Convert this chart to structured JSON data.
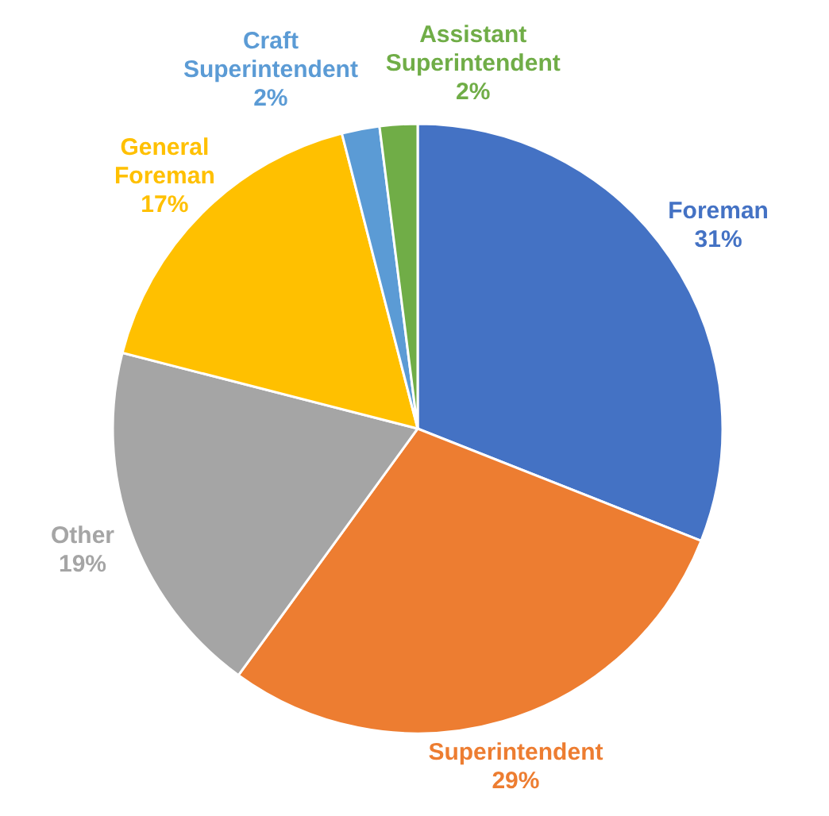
{
  "chart_data": {
    "type": "pie",
    "categories": [
      "Foreman",
      "Superintendent",
      "Other",
      "General Foreman",
      "Craft Superintendent",
      "Assistant Superintendent"
    ],
    "values": [
      31,
      29,
      19,
      17,
      2,
      2
    ],
    "colors": [
      "#4472c4",
      "#ed7d31",
      "#a5a5a5",
      "#ffc000",
      "#5b9bd5",
      "#70ad47"
    ],
    "value_labels": [
      "31%",
      "29%",
      "19%",
      "17%",
      "2%",
      "2%"
    ]
  }
}
